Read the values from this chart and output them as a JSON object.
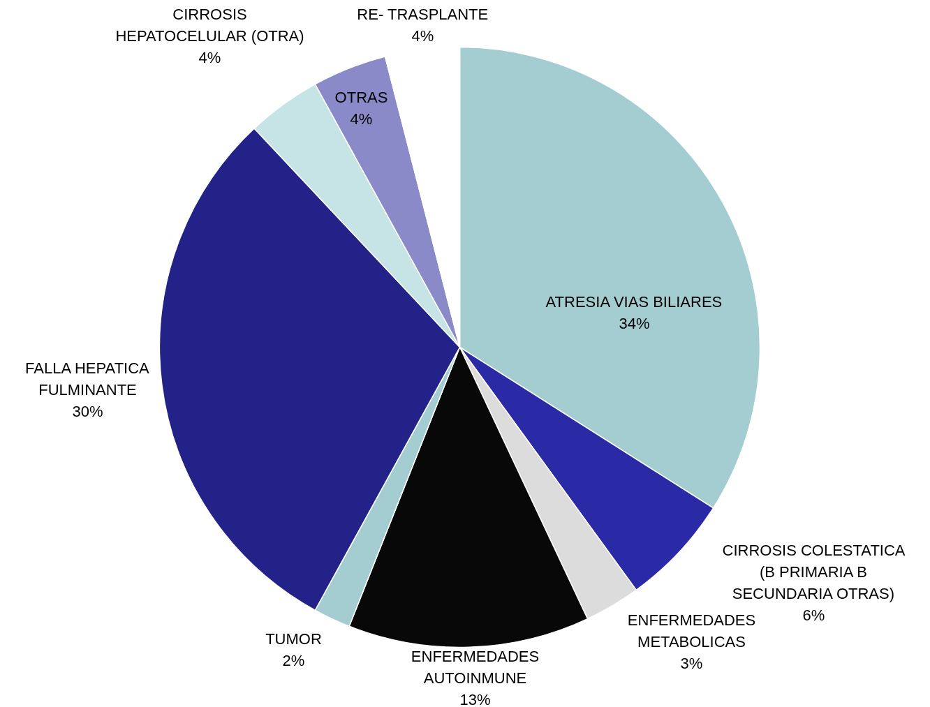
{
  "chart_data": {
    "type": "pie",
    "categories": [
      "ATRESIA VIAS BILIARES",
      "CIRROSIS COLESTATICA\n(B PRIMARIA B\nSECUNDARIA OTRAS)",
      "ENFERMEDADES\nMETABOLICAS",
      "ENFERMEDADES\nAUTOINMUNE",
      "TUMOR",
      "FALLA HEPATICA\nFULMINANTE",
      "CIRROSIS\nHEPATOCELULAR (OTRA)",
      "OTRAS",
      "RE- TRASPLANTE"
    ],
    "values": [
      34,
      6,
      3,
      13,
      2,
      30,
      4,
      4,
      4
    ],
    "colors": [
      "#a3cdd1",
      "#2a2aa6",
      "#dcdcdc",
      "#080808",
      "#a3cdd1",
      "#222288",
      "#c6e3e5",
      "#8a8ac8",
      "#ffffff"
    ],
    "value_labels": [
      "34%",
      "6%",
      "3%",
      "13%",
      "2%",
      "30%",
      "4%",
      "4%",
      "4%"
    ]
  }
}
